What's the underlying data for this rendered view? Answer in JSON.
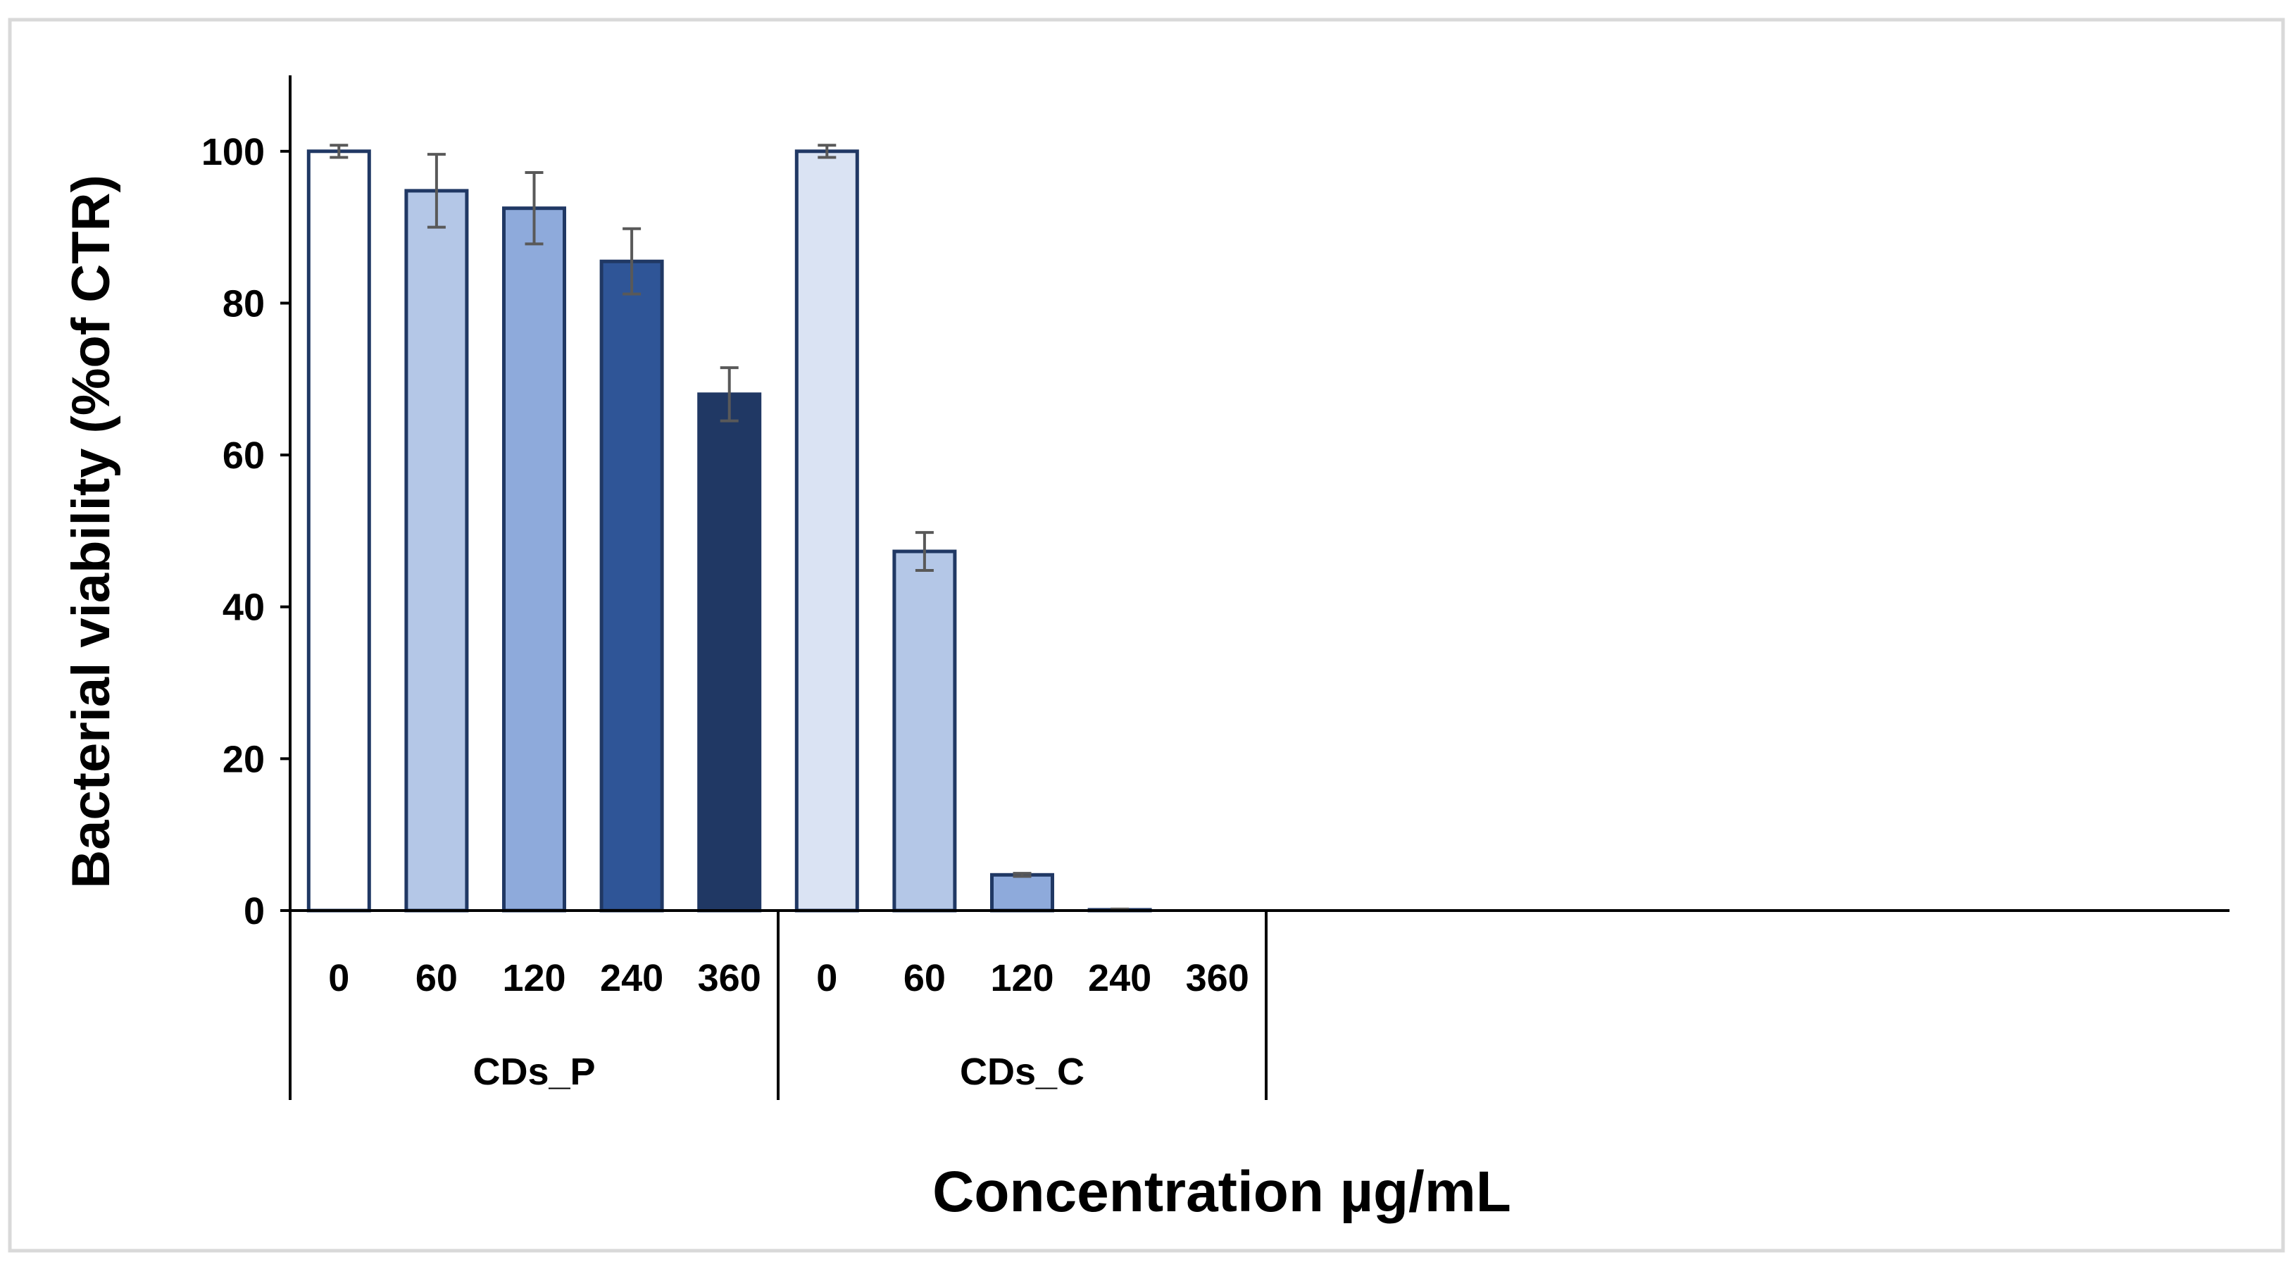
{
  "chart_data": {
    "type": "bar",
    "title": "",
    "ylabel": "Bacterial viability (%of CTR)",
    "xlabel": "Concentration µg/mL",
    "ylim": [
      0,
      110
    ],
    "yticks": [
      0,
      20,
      40,
      60,
      80,
      100
    ],
    "groups": [
      {
        "name": "CDs_P",
        "categories": [
          "0",
          "60",
          "120",
          "240",
          "360"
        ],
        "values": [
          100,
          94.8,
          92.5,
          85.5,
          68
        ],
        "errors": [
          0.8,
          4.8,
          4.7,
          4.3,
          3.5
        ],
        "colors": [
          "#ffffff",
          "#b4c7e7",
          "#8eaadb",
          "#2f5597",
          "#203864"
        ]
      },
      {
        "name": "CDs_C",
        "categories": [
          "0",
          "60",
          "120",
          "240",
          "360"
        ],
        "values": [
          100,
          47.3,
          4.7,
          0.1,
          0
        ],
        "errors": [
          0.8,
          2.5,
          0.2,
          0.1,
          0
        ],
        "colors": [
          "#dae3f3",
          "#b4c7e7",
          "#8eaadb",
          "#2f5597",
          "#203864"
        ]
      }
    ],
    "grid": false,
    "legend": "none",
    "colors": {
      "outline": "#203864",
      "axis": "#000000",
      "error_bar": "#595959",
      "frame": "#d9d9d9"
    }
  }
}
